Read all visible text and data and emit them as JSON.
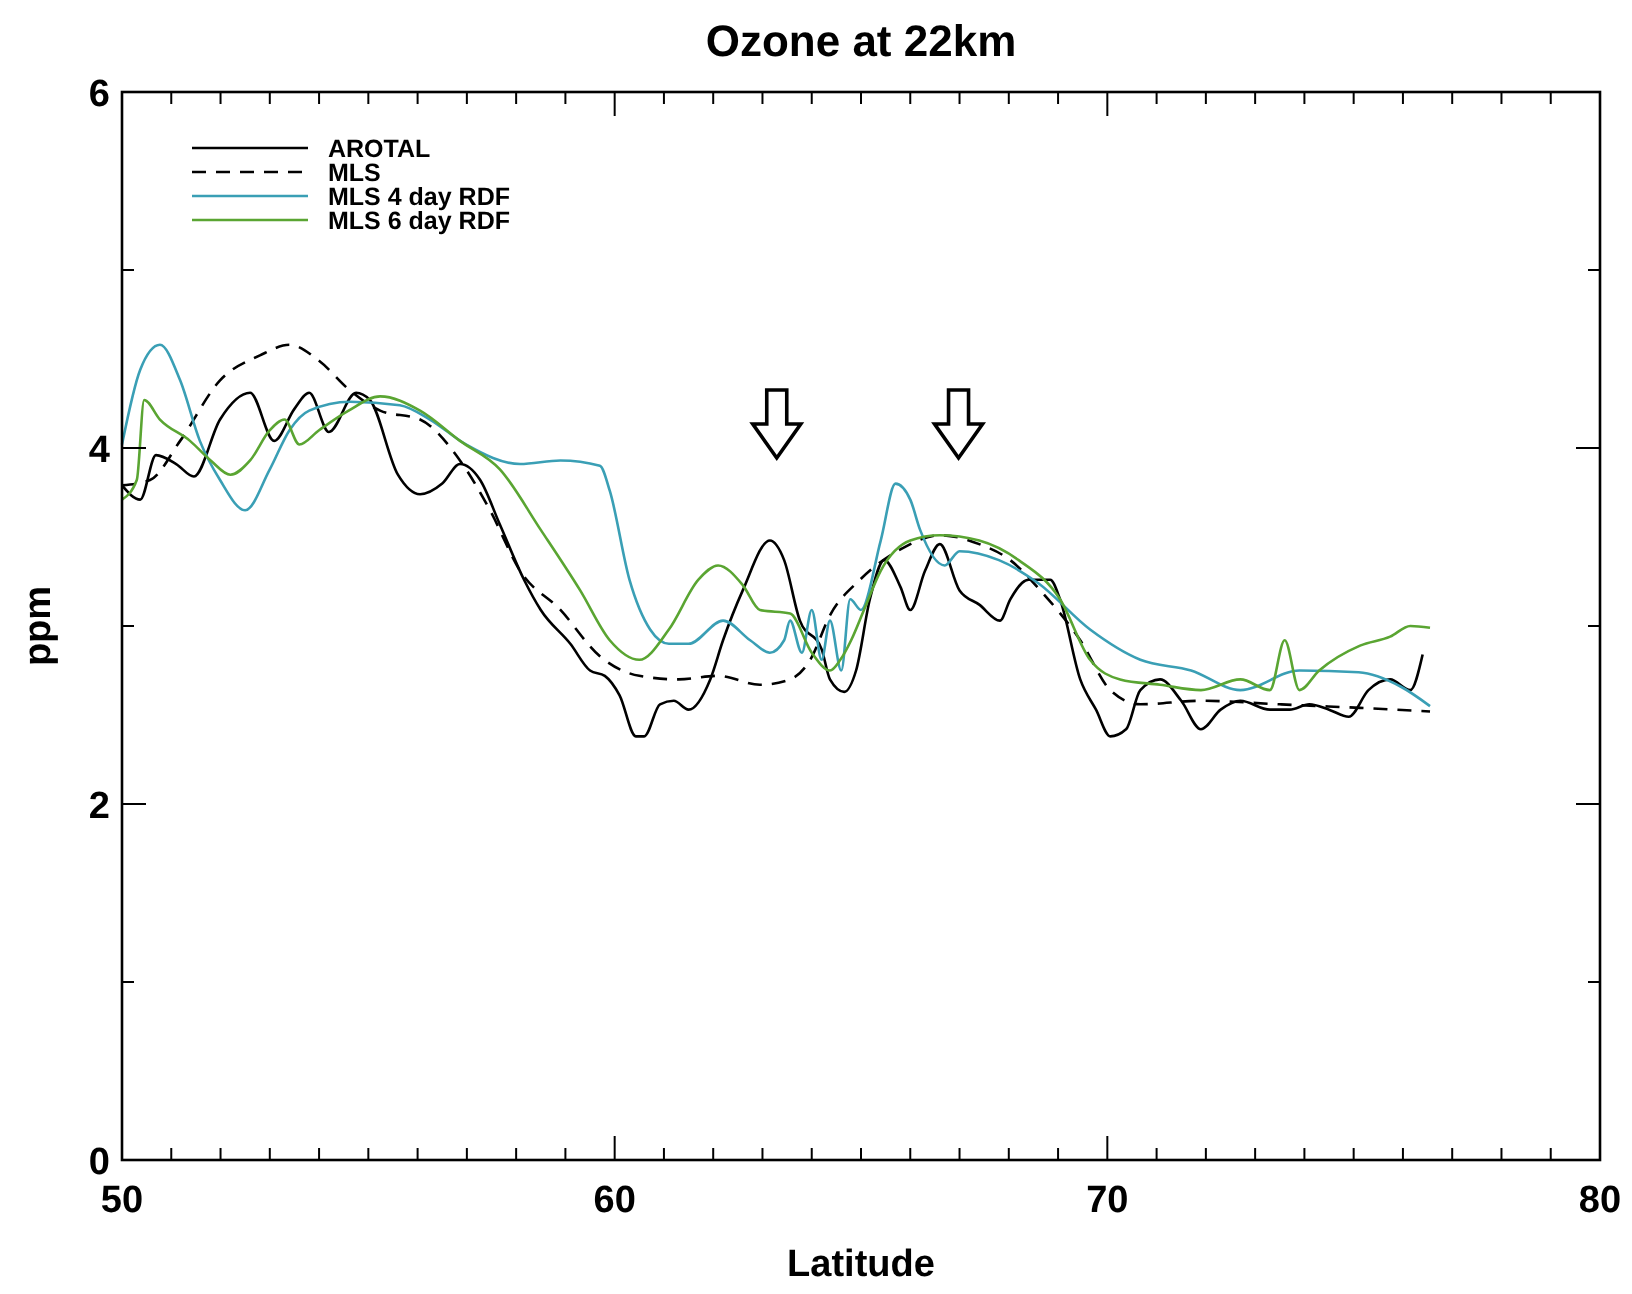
{
  "chart_data": {
    "type": "line",
    "title": "Ozone at 22km",
    "xlabel": "Latitude",
    "ylabel": "ppm",
    "xlim": [
      50,
      80
    ],
    "ylim": [
      0,
      6
    ],
    "xticks": [
      50,
      {
        "value": 51,
        "label": null
      },
      {
        "value": 52,
        "label": null
      },
      {
        "value": 53,
        "label": null
      },
      {
        "value": 54,
        "label": null
      },
      {
        "value": 55,
        "label": null
      },
      {
        "value": 56,
        "label": null
      },
      {
        "value": 57,
        "label": null
      },
      {
        "value": 58,
        "label": null
      },
      {
        "value": 59,
        "label": null
      },
      60,
      {
        "value": 61,
        "label": null
      },
      {
        "value": 62,
        "label": null
      },
      {
        "value": 63,
        "label": null
      },
      {
        "value": 64,
        "label": null
      },
      {
        "value": 65,
        "label": null
      },
      {
        "value": 66,
        "label": null
      },
      {
        "value": 67,
        "label": null
      },
      {
        "value": 68,
        "label": null
      },
      {
        "value": 69,
        "label": null
      },
      70,
      {
        "value": 71,
        "label": null
      },
      {
        "value": 72,
        "label": null
      },
      {
        "value": 73,
        "label": null
      },
      {
        "value": 74,
        "label": null
      },
      {
        "value": 75,
        "label": null
      },
      {
        "value": 76,
        "label": null
      },
      {
        "value": 77,
        "label": null
      },
      {
        "value": 78,
        "label": null
      },
      {
        "value": 79,
        "label": null
      },
      80
    ],
    "yticks": [
      0,
      {
        "value": 1,
        "label": null
      },
      2,
      {
        "value": 3,
        "label": null
      },
      4,
      {
        "value": 5,
        "label": null
      },
      6
    ],
    "grid": false,
    "legend": "top left",
    "marker": "none",
    "series": [
      {
        "name": "AROTAL",
        "color": "#000000",
        "line_style": "solid",
        "x": [
          50,
          50.37,
          50.69,
          51.1,
          51.46,
          51.99,
          52.6,
          53.09,
          53.5,
          53.8,
          54.2,
          54.75,
          55.03,
          55.6,
          56.05,
          56.5,
          56.86,
          57.27,
          57.67,
          58.16,
          58.5,
          59.1,
          59.5,
          59.8,
          60.1,
          60.43,
          60.6,
          60.92,
          61.2,
          61.5,
          61.94,
          62.2,
          62.6,
          63.15,
          63.44,
          63.76,
          64.2,
          64.37,
          64.66,
          64.9,
          65.18,
          65.47,
          65.8,
          66.0,
          66.3,
          66.6,
          67.0,
          67.4,
          67.82,
          68.03,
          68.4,
          68.84,
          69.04,
          69.45,
          69.77,
          70.06,
          70.38,
          70.67,
          71.07,
          71.5,
          71.9,
          72.3,
          72.7,
          73.3,
          73.7,
          74.1,
          74.5,
          74.9,
          75.3,
          75.74,
          76.15,
          76.4
        ],
        "values": [
          3.79,
          3.71,
          3.96,
          3.91,
          3.84,
          4.16,
          4.31,
          4.04,
          4.22,
          4.31,
          4.09,
          4.31,
          4.27,
          3.85,
          3.74,
          3.8,
          3.91,
          3.82,
          3.57,
          3.26,
          3.09,
          2.9,
          2.75,
          2.72,
          2.61,
          2.38,
          2.38,
          2.56,
          2.58,
          2.53,
          2.7,
          2.92,
          3.2,
          3.48,
          3.37,
          3.03,
          2.87,
          2.7,
          2.63,
          2.75,
          3.15,
          3.37,
          3.22,
          3.09,
          3.31,
          3.46,
          3.2,
          3.12,
          3.03,
          3.15,
          3.26,
          3.26,
          3.15,
          2.7,
          2.53,
          2.38,
          2.42,
          2.64,
          2.7,
          2.58,
          2.42,
          2.53,
          2.58,
          2.53,
          2.53,
          2.56,
          2.53,
          2.49,
          2.64,
          2.7,
          2.64,
          2.84
        ]
      },
      {
        "name": "MLS",
        "color": "#000000",
        "line_style": "dashed",
        "x": [
          50,
          50.57,
          51.18,
          51.99,
          52.8,
          53.4,
          54.0,
          54.6,
          55.24,
          56.05,
          56.86,
          57.47,
          58.08,
          58.9,
          59.7,
          60.5,
          61.3,
          62.1,
          62.95,
          63.56,
          63.97,
          64.37,
          64.98,
          65.8,
          66.6,
          67.4,
          68.03,
          68.64,
          69.45,
          70.06,
          70.67,
          71.9,
          73.5,
          75.13,
          76.55
        ],
        "values": [
          3.79,
          3.82,
          4.04,
          4.38,
          4.52,
          4.58,
          4.49,
          4.33,
          4.21,
          4.16,
          3.93,
          3.65,
          3.31,
          3.09,
          2.83,
          2.72,
          2.7,
          2.72,
          2.67,
          2.7,
          2.81,
          3.06,
          3.26,
          3.43,
          3.51,
          3.46,
          3.37,
          3.2,
          2.92,
          2.64,
          2.56,
          2.58,
          2.56,
          2.54,
          2.52
        ]
      },
      {
        "name": "MLS 4 day RDF",
        "color": "#3a9fb5",
        "line_style": "solid",
        "x": [
          50,
          50.37,
          50.77,
          51.18,
          51.58,
          51.99,
          52.5,
          53.0,
          53.4,
          53.8,
          54.63,
          55.64,
          56.25,
          56.98,
          58.08,
          58.9,
          59.7,
          59.9,
          60.3,
          60.72,
          61.1,
          61.5,
          62.2,
          62.75,
          63.15,
          63.44,
          63.56,
          63.8,
          64.0,
          64.2,
          64.37,
          64.6,
          64.78,
          65.0,
          65.4,
          65.7,
          66.0,
          66.2,
          66.7,
          67.0,
          67.8,
          68.6,
          69.65,
          70.67,
          71.7,
          72.7,
          73.9,
          75.1,
          75.95,
          76.55
        ],
        "values": [
          4.02,
          4.44,
          4.58,
          4.38,
          4.04,
          3.82,
          3.65,
          3.88,
          4.1,
          4.21,
          4.26,
          4.24,
          4.16,
          4.02,
          3.91,
          3.93,
          3.9,
          3.76,
          3.26,
          2.98,
          2.9,
          2.9,
          3.03,
          2.92,
          2.85,
          2.92,
          3.03,
          2.85,
          3.09,
          2.81,
          3.03,
          2.75,
          3.15,
          3.09,
          3.48,
          3.8,
          3.71,
          3.54,
          3.34,
          3.42,
          3.37,
          3.24,
          2.98,
          2.81,
          2.75,
          2.64,
          2.75,
          2.74,
          2.66,
          2.55
        ]
      },
      {
        "name": "MLS 6 day RDF",
        "color": "#5aa532",
        "line_style": "solid",
        "x": [
          50,
          50.3,
          50.45,
          50.77,
          51.38,
          51.8,
          52.2,
          52.6,
          53.0,
          53.3,
          53.6,
          54.0,
          54.6,
          55.24,
          56.05,
          56.86,
          57.67,
          58.5,
          59.3,
          59.9,
          60.5,
          61.1,
          61.7,
          62.1,
          62.6,
          62.95,
          63.56,
          64.0,
          64.37,
          64.58,
          64.8,
          65.06,
          65.4,
          66.0,
          66.6,
          67.4,
          68.2,
          69.04,
          69.65,
          70.26,
          71.07,
          71.9,
          72.7,
          73.3,
          73.6,
          73.9,
          74.3,
          75.13,
          75.74,
          76.15,
          76.55
        ],
        "values": [
          3.71,
          3.82,
          4.27,
          4.16,
          4.04,
          3.93,
          3.85,
          3.93,
          4.1,
          4.16,
          4.02,
          4.1,
          4.21,
          4.29,
          4.21,
          4.04,
          3.88,
          3.54,
          3.2,
          2.92,
          2.81,
          2.98,
          3.26,
          3.34,
          3.23,
          3.09,
          3.07,
          2.85,
          2.75,
          2.81,
          2.92,
          3.09,
          3.31,
          3.48,
          3.51,
          3.48,
          3.37,
          3.15,
          2.81,
          2.7,
          2.67,
          2.64,
          2.7,
          2.64,
          2.92,
          2.64,
          2.75,
          2.89,
          2.94,
          3.0,
          2.99
        ]
      }
    ]
  }
}
